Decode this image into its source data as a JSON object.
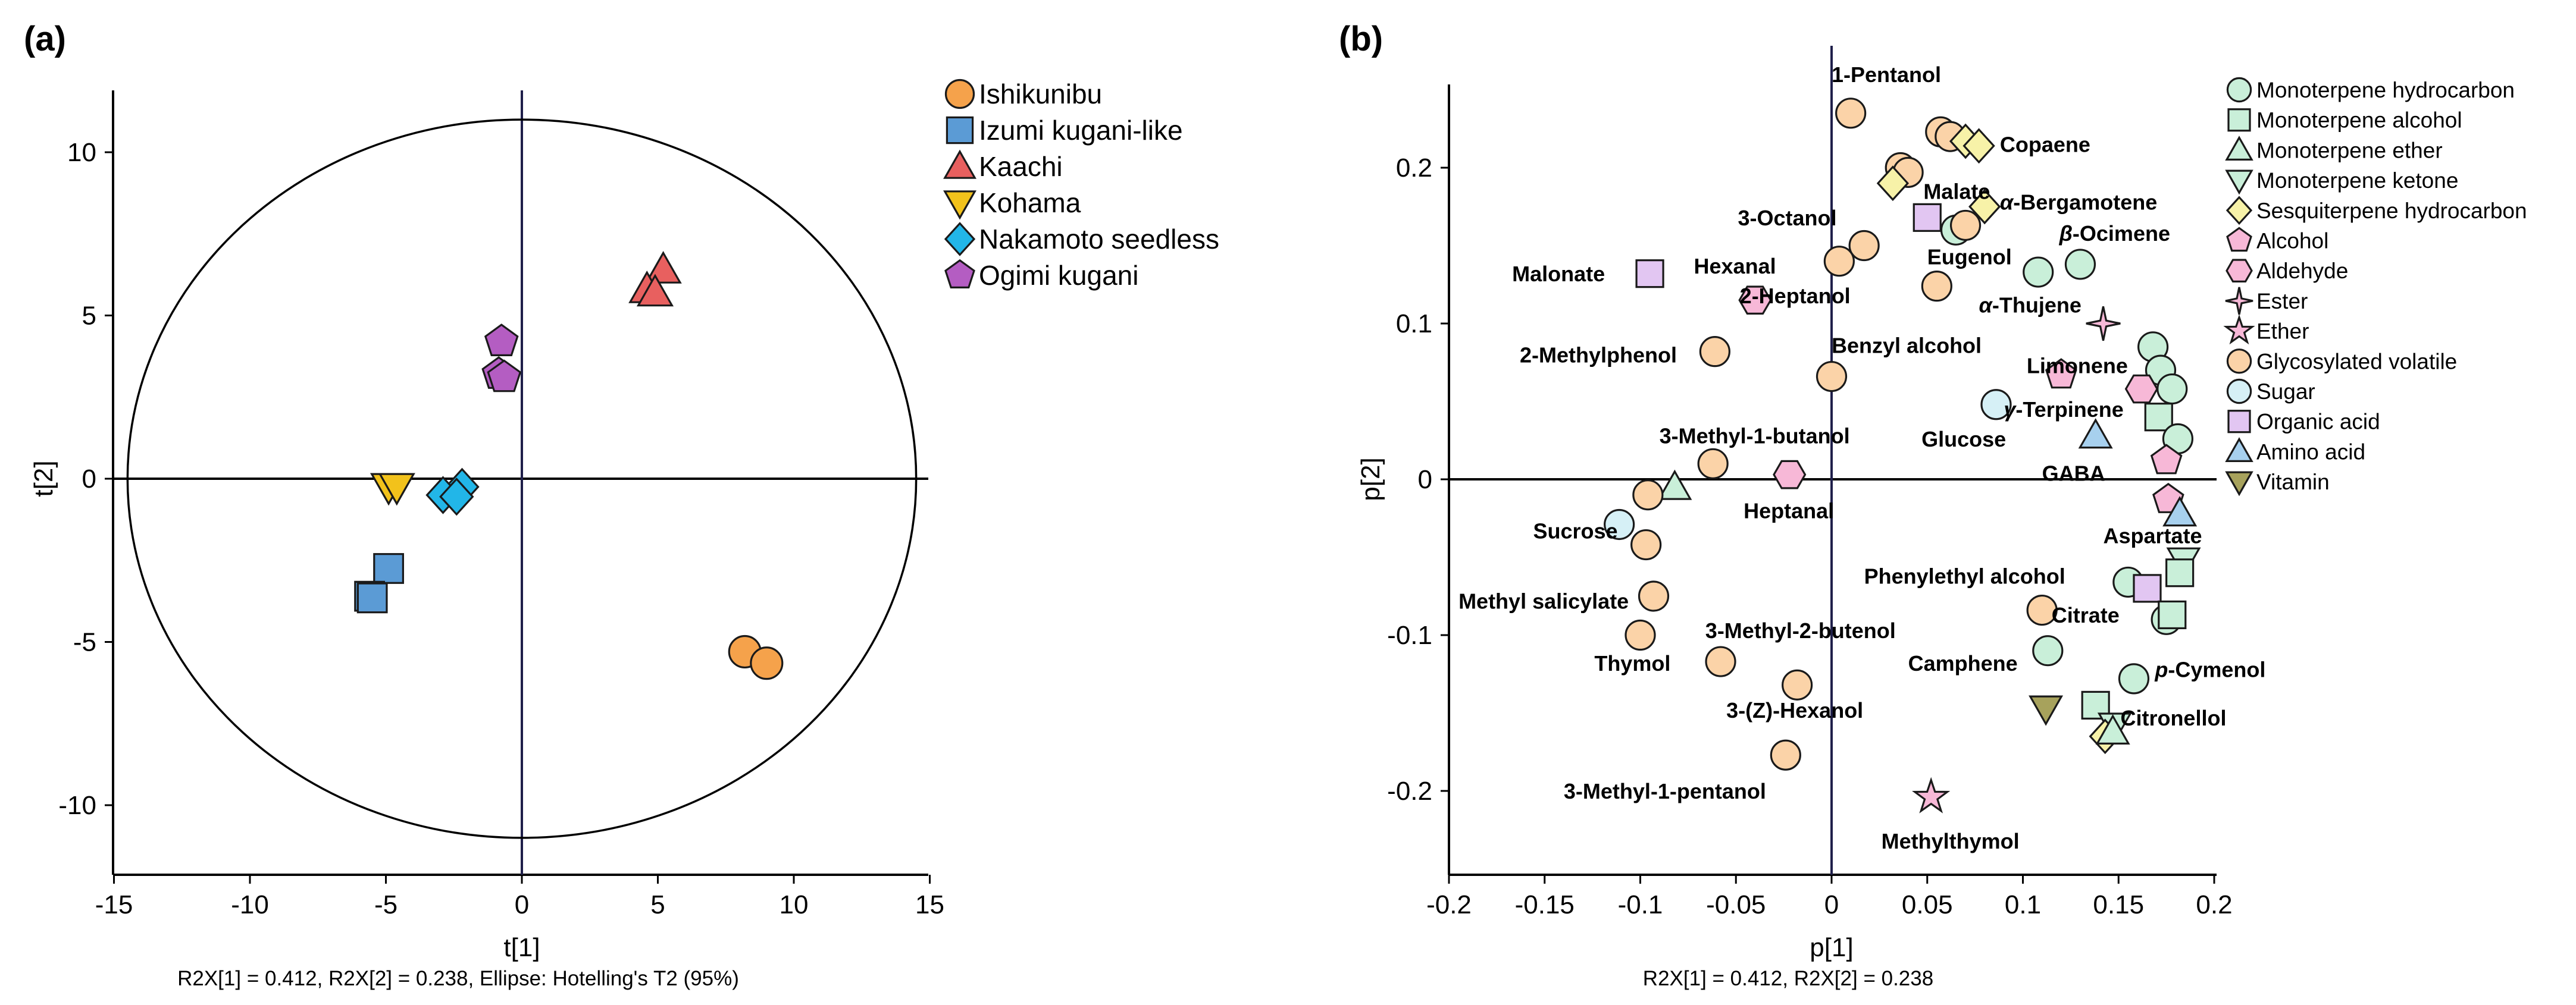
{
  "chart_data": [
    {
      "panel_label": "(a)",
      "type": "scatter",
      "xlabel": "t[1]",
      "ylabel": "t[2]",
      "xlim": [
        -15,
        15
      ],
      "ylim": [
        -12,
        12
      ],
      "xticks": [
        -15,
        -10,
        -5,
        0,
        5,
        10,
        15
      ],
      "yticks": [
        10,
        5,
        0,
        -5,
        -10
      ],
      "xtick_labels": [
        "-15",
        "-10",
        "-5",
        "0",
        "5",
        "10",
        "15"
      ],
      "ytick_labels": [
        "10",
        "5",
        "0",
        "-5",
        "-10"
      ],
      "footnote": "R2X[1] = 0.412, R2X[2] = 0.238, Ellipse: Hotelling's T2 (95%)",
      "ellipse": {
        "cx": 0,
        "cy": 0,
        "rx": 14.5,
        "ry": 11.0
      },
      "legend_position": "right",
      "series": [
        {
          "name": "Ishikunibu",
          "marker": "circle",
          "color": "#f5a24b",
          "points": [
            [
              8.2,
              -5.3
            ],
            [
              9.0,
              -5.65
            ]
          ]
        },
        {
          "name": "Izumi kugani-like",
          "marker": "square",
          "color": "#5b9bd5",
          "points": [
            [
              -4.9,
              -2.75
            ],
            [
              -5.6,
              -3.6
            ],
            [
              -5.5,
              -3.65
            ]
          ]
        },
        {
          "name": "Kaachi",
          "marker": "triangle-up",
          "color": "#e8605f",
          "points": [
            [
              5.2,
              6.4
            ],
            [
              4.6,
              5.8
            ],
            [
              4.9,
              5.7
            ]
          ]
        },
        {
          "name": "Kohama",
          "marker": "triangle-down",
          "color": "#f2c21b",
          "points": [
            [
              -4.9,
              -0.25
            ],
            [
              -4.6,
              -0.25
            ]
          ]
        },
        {
          "name": "Nakamoto seedless",
          "marker": "diamond",
          "color": "#22b6e8",
          "points": [
            [
              -2.2,
              -0.25
            ],
            [
              -2.9,
              -0.5
            ],
            [
              -2.4,
              -0.55
            ]
          ]
        },
        {
          "name": "Ogimi kugani",
          "marker": "pentagon",
          "color": "#b45dc2",
          "points": [
            [
              -0.75,
              4.2
            ],
            [
              -0.85,
              3.2
            ],
            [
              -0.65,
              3.1
            ]
          ]
        }
      ]
    },
    {
      "panel_label": "(b)",
      "type": "scatter",
      "xlabel": "p[1]",
      "ylabel": "p[2]",
      "xlim": [
        -0.2,
        0.2
      ],
      "ylim": [
        -0.25,
        0.25
      ],
      "xticks": [
        -0.2,
        -0.15,
        -0.1,
        -0.05,
        0,
        0.05,
        0.1,
        0.15,
        0.2
      ],
      "yticks": [
        0.2,
        0.1,
        0,
        -0.1,
        -0.2
      ],
      "xtick_labels": [
        "-0.2",
        "-0.15",
        "-0.1",
        "-0.05",
        "0",
        "0.05",
        "0.1",
        "0.15",
        "0.2"
      ],
      "ytick_labels": [
        "0.2",
        "0.1",
        "0",
        "-0.1",
        "-0.2"
      ],
      "footnote": "R2X[1] = 0.412, R2X[2] = 0.238",
      "legend_position": "right",
      "categories": [
        {
          "name": "Monoterpene hydrocarbon",
          "marker": "circle",
          "color": "#c9efd9"
        },
        {
          "name": "Monoterpene alcohol",
          "marker": "square",
          "color": "#c9efd9"
        },
        {
          "name": "Monoterpene ether",
          "marker": "triangle-up",
          "color": "#c9efd9"
        },
        {
          "name": "Monoterpene ketone",
          "marker": "triangle-down",
          "color": "#c9efd9"
        },
        {
          "name": "Sesquiterpene hydrocarbon",
          "marker": "diamond",
          "color": "#f7f2a8"
        },
        {
          "name": "Alcohol",
          "marker": "pentagon",
          "color": "#f7b8d7"
        },
        {
          "name": "Aldehyde",
          "marker": "hexagon",
          "color": "#f7b8d7"
        },
        {
          "name": "Ester",
          "marker": "star4",
          "color": "#f7b8d7"
        },
        {
          "name": "Ether",
          "marker": "star5",
          "color": "#f7b8d7"
        },
        {
          "name": "Glycosylated volatile",
          "marker": "circle",
          "color": "#fbd3a8"
        },
        {
          "name": "Sugar",
          "marker": "circle",
          "color": "#d6f0f6"
        },
        {
          "name": "Organic acid",
          "marker": "square",
          "color": "#e2c6f2"
        },
        {
          "name": "Amino acid",
          "marker": "triangle-up",
          "color": "#a7d0ee"
        },
        {
          "name": "Vitamin",
          "marker": "triangle-down",
          "color": "#a7a25c"
        }
      ],
      "points": [
        {
          "c": 9,
          "x": 0.01,
          "y": 0.235
        },
        {
          "c": 9,
          "x": 0.057,
          "y": 0.223
        },
        {
          "c": 9,
          "x": 0.062,
          "y": 0.22
        },
        {
          "c": 4,
          "x": 0.07,
          "y": 0.217
        },
        {
          "c": 4,
          "x": 0.077,
          "y": 0.214
        },
        {
          "c": 9,
          "x": 0.036,
          "y": 0.2
        },
        {
          "c": 9,
          "x": 0.04,
          "y": 0.197
        },
        {
          "c": 4,
          "x": 0.032,
          "y": 0.19
        },
        {
          "c": 4,
          "x": 0.08,
          "y": 0.175
        },
        {
          "c": 11,
          "x": 0.05,
          "y": 0.168
        },
        {
          "c": 0,
          "x": 0.065,
          "y": 0.16
        },
        {
          "c": 9,
          "x": 0.07,
          "y": 0.163
        },
        {
          "c": 9,
          "x": 0.017,
          "y": 0.15
        },
        {
          "c": 9,
          "x": 0.004,
          "y": 0.14
        },
        {
          "c": 0,
          "x": 0.108,
          "y": 0.133
        },
        {
          "c": 0,
          "x": 0.13,
          "y": 0.138
        },
        {
          "c": 11,
          "x": -0.095,
          "y": 0.132
        },
        {
          "c": 9,
          "x": 0.055,
          "y": 0.124
        },
        {
          "c": 6,
          "x": -0.04,
          "y": 0.115
        },
        {
          "c": 7,
          "x": 0.142,
          "y": 0.1
        },
        {
          "c": 9,
          "x": -0.061,
          "y": 0.082
        },
        {
          "c": 0,
          "x": 0.168,
          "y": 0.085
        },
        {
          "c": 0,
          "x": 0.172,
          "y": 0.07
        },
        {
          "c": 9,
          "x": 0.0,
          "y": 0.066
        },
        {
          "c": 5,
          "x": 0.12,
          "y": 0.067
        },
        {
          "c": 6,
          "x": 0.162,
          "y": 0.058
        },
        {
          "c": 0,
          "x": 0.178,
          "y": 0.058
        },
        {
          "c": 10,
          "x": 0.086,
          "y": 0.048
        },
        {
          "c": 1,
          "x": 0.171,
          "y": 0.04
        },
        {
          "c": 12,
          "x": 0.138,
          "y": 0.028
        },
        {
          "c": 0,
          "x": 0.181,
          "y": 0.026
        },
        {
          "c": 5,
          "x": 0.175,
          "y": 0.012
        },
        {
          "c": 9,
          "x": -0.062,
          "y": 0.01
        },
        {
          "c": 6,
          "x": -0.022,
          "y": 0.003
        },
        {
          "c": 2,
          "x": -0.082,
          "y": -0.005
        },
        {
          "c": 9,
          "x": -0.096,
          "y": -0.01
        },
        {
          "c": 5,
          "x": 0.176,
          "y": -0.013
        },
        {
          "c": 12,
          "x": 0.182,
          "y": -0.022
        },
        {
          "c": 10,
          "x": -0.111,
          "y": -0.029
        },
        {
          "c": 9,
          "x": -0.097,
          "y": -0.042
        },
        {
          "c": 3,
          "x": 0.184,
          "y": -0.052
        },
        {
          "c": 1,
          "x": 0.182,
          "y": -0.06
        },
        {
          "c": 0,
          "x": 0.155,
          "y": -0.066
        },
        {
          "c": 11,
          "x": 0.165,
          "y": -0.07
        },
        {
          "c": 9,
          "x": -0.093,
          "y": -0.075
        },
        {
          "c": 9,
          "x": 0.11,
          "y": -0.084
        },
        {
          "c": 0,
          "x": 0.175,
          "y": -0.09
        },
        {
          "c": 1,
          "x": 0.178,
          "y": -0.087
        },
        {
          "c": 9,
          "x": -0.1,
          "y": -0.1
        },
        {
          "c": 0,
          "x": 0.113,
          "y": -0.11
        },
        {
          "c": 9,
          "x": -0.058,
          "y": -0.117
        },
        {
          "c": 0,
          "x": 0.158,
          "y": -0.128
        },
        {
          "c": 9,
          "x": -0.018,
          "y": -0.132
        },
        {
          "c": 13,
          "x": 0.112,
          "y": -0.147
        },
        {
          "c": 1,
          "x": 0.138,
          "y": -0.145
        },
        {
          "c": 3,
          "x": 0.148,
          "y": -0.158
        },
        {
          "c": 4,
          "x": 0.143,
          "y": -0.165
        },
        {
          "c": 2,
          "x": 0.147,
          "y": -0.162
        },
        {
          "c": 9,
          "x": -0.024,
          "y": -0.177
        },
        {
          "c": 8,
          "x": 0.052,
          "y": -0.204
        }
      ],
      "annotations": [
        {
          "text": "1-Pentanol",
          "x": 0.0,
          "y": 0.26,
          "italic": ""
        },
        {
          "text": "Copaene",
          "x": 0.088,
          "y": 0.215,
          "italic": ""
        },
        {
          "text": "Malate",
          "x": 0.048,
          "y": 0.185,
          "italic": ""
        },
        {
          "text": "-Bergamotene",
          "x": 0.088,
          "y": 0.178,
          "italic": "α"
        },
        {
          "text": "3-Octanol",
          "x": -0.049,
          "y": 0.168,
          "italic": ""
        },
        {
          "text": "-Ocimene",
          "x": 0.119,
          "y": 0.158,
          "italic": "β"
        },
        {
          "text": "Eugenol",
          "x": 0.05,
          "y": 0.143,
          "italic": ""
        },
        {
          "text": "Malonate",
          "x": -0.167,
          "y": 0.132,
          "italic": ""
        },
        {
          "text": "Hexanal",
          "x": -0.072,
          "y": 0.137,
          "italic": ""
        },
        {
          "text": "2-Heptanol",
          "x": -0.048,
          "y": 0.118,
          "italic": ""
        },
        {
          "text": "-Thujene",
          "x": 0.077,
          "y": 0.112,
          "italic": "α"
        },
        {
          "text": "Benzyl alcohol",
          "x": 0.0,
          "y": 0.086,
          "italic": ""
        },
        {
          "text": "2-Methylphenol",
          "x": -0.163,
          "y": 0.08,
          "italic": ""
        },
        {
          "text": "Limonene",
          "x": 0.102,
          "y": 0.073,
          "italic": ""
        },
        {
          "text": "-Terpinene",
          "x": 0.09,
          "y": 0.045,
          "italic": "γ"
        },
        {
          "text": "3-Methyl-1-butanol",
          "x": -0.09,
          "y": 0.028,
          "italic": ""
        },
        {
          "text": "Glucose",
          "x": 0.047,
          "y": 0.026,
          "italic": ""
        },
        {
          "text": "GABA",
          "x": 0.11,
          "y": 0.004,
          "italic": ""
        },
        {
          "text": "Heptanal",
          "x": -0.046,
          "y": -0.02,
          "italic": ""
        },
        {
          "text": "Sucrose",
          "x": -0.156,
          "y": -0.033,
          "italic": ""
        },
        {
          "text": "Aspartate",
          "x": 0.142,
          "y": -0.036,
          "italic": ""
        },
        {
          "text": "Phenylethyl alcohol",
          "x": 0.017,
          "y": -0.062,
          "italic": ""
        },
        {
          "text": "Methyl salicylate",
          "x": -0.195,
          "y": -0.078,
          "italic": ""
        },
        {
          "text": "Citrate",
          "x": 0.115,
          "y": -0.087,
          "italic": ""
        },
        {
          "text": "3-Methyl-2-butenol",
          "x": -0.066,
          "y": -0.097,
          "italic": ""
        },
        {
          "text": "Thymol",
          "x": -0.124,
          "y": -0.118,
          "italic": ""
        },
        {
          "text": "Camphene",
          "x": 0.04,
          "y": -0.118,
          "italic": ""
        },
        {
          "text": "-Cymenol",
          "x": 0.169,
          "y": -0.122,
          "italic": "p"
        },
        {
          "text": "3-(Z)-Hexanol",
          "x": -0.055,
          "y": -0.148,
          "italic": ""
        },
        {
          "text": "Citronellol",
          "x": 0.151,
          "y": -0.153,
          "italic": ""
        },
        {
          "text": "3-Methyl-1-pentanol",
          "x": -0.14,
          "y": -0.2,
          "italic": ""
        },
        {
          "text": "Methylthymol",
          "x": 0.026,
          "y": -0.232,
          "italic": ""
        }
      ]
    }
  ]
}
